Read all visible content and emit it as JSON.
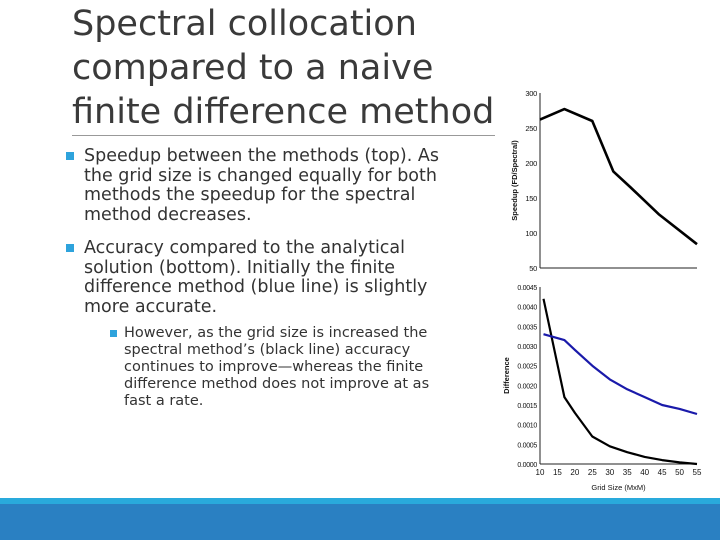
{
  "slide": {
    "title": "Spectral collocation compared to a naive finite difference method",
    "bullets": [
      {
        "text": "Speedup between the methods (top). As the grid size is changed equally for both methods the speedup for the spectral method decreases."
      },
      {
        "text": "Accuracy compared to the analytical solution (bottom). Initially the finite difference method (blue line) is slightly more accurate.",
        "sub": [
          "However, as the grid size is increased the spectral method’s (black line) accuracy continues to improve—whereas the finite difference method does not improve at as fast a rate."
        ]
      }
    ],
    "colors": {
      "accent": "#2ea3dc",
      "footer_light": "#29aadc",
      "footer_dark": "#2a80c2"
    }
  },
  "chart_data": [
    {
      "type": "line",
      "title": "",
      "xlabel": "",
      "ylabel": "Speedup (FD/Spectral)",
      "xlim": [
        10,
        55
      ],
      "ylim": [
        50,
        300
      ],
      "yticks": [
        "300",
        "250",
        "200",
        "150",
        "100",
        "50"
      ],
      "ytick_values": [
        300,
        250,
        200,
        150,
        100,
        50
      ],
      "grid": false,
      "series": [
        {
          "color": "#000000",
          "x": [
            10,
            17,
            25,
            31,
            36,
            44,
            55
          ],
          "y": [
            262,
            277,
            260,
            188,
            165,
            127,
            84
          ]
        }
      ]
    },
    {
      "type": "line",
      "title": "",
      "xlabel": "Grid Size (MxM)",
      "ylabel": "Difference",
      "xlim": [
        10,
        55
      ],
      "ylim": [
        0,
        0.0045
      ],
      "xticks": [
        "10",
        "15",
        "20",
        "25",
        "30",
        "35",
        "40",
        "45",
        "50",
        "55"
      ],
      "xtick_values": [
        10,
        15,
        20,
        25,
        30,
        35,
        40,
        45,
        50,
        55
      ],
      "yticks": [
        "0.0045",
        "0.0040",
        "0.0035",
        "0.0030",
        "0.0025",
        "0.0020",
        "0.0015",
        "0.0010",
        "0.0005",
        "0.0000"
      ],
      "ytick_values": [
        0.0045,
        0.004,
        0.0035,
        0.003,
        0.0025,
        0.002,
        0.0015,
        0.001,
        0.0005,
        0
      ],
      "grid": false,
      "series": [
        {
          "color": "#000000",
          "x": [
            11,
            17,
            20,
            25,
            30,
            35,
            40,
            45,
            50,
            55
          ],
          "y": [
            0.0042,
            0.0017,
            0.0013,
            0.0007,
            0.00045,
            0.0003,
            0.00018,
            0.0001,
            4e-05,
            0.0
          ]
        },
        {
          "color": "#1a1aaa",
          "x": [
            11,
            17,
            20,
            25,
            30,
            35,
            40,
            45,
            50,
            55
          ],
          "y": [
            0.0033,
            0.00315,
            0.0029,
            0.0025,
            0.00215,
            0.0019,
            0.0017,
            0.0015,
            0.0014,
            0.00127
          ]
        }
      ]
    }
  ]
}
